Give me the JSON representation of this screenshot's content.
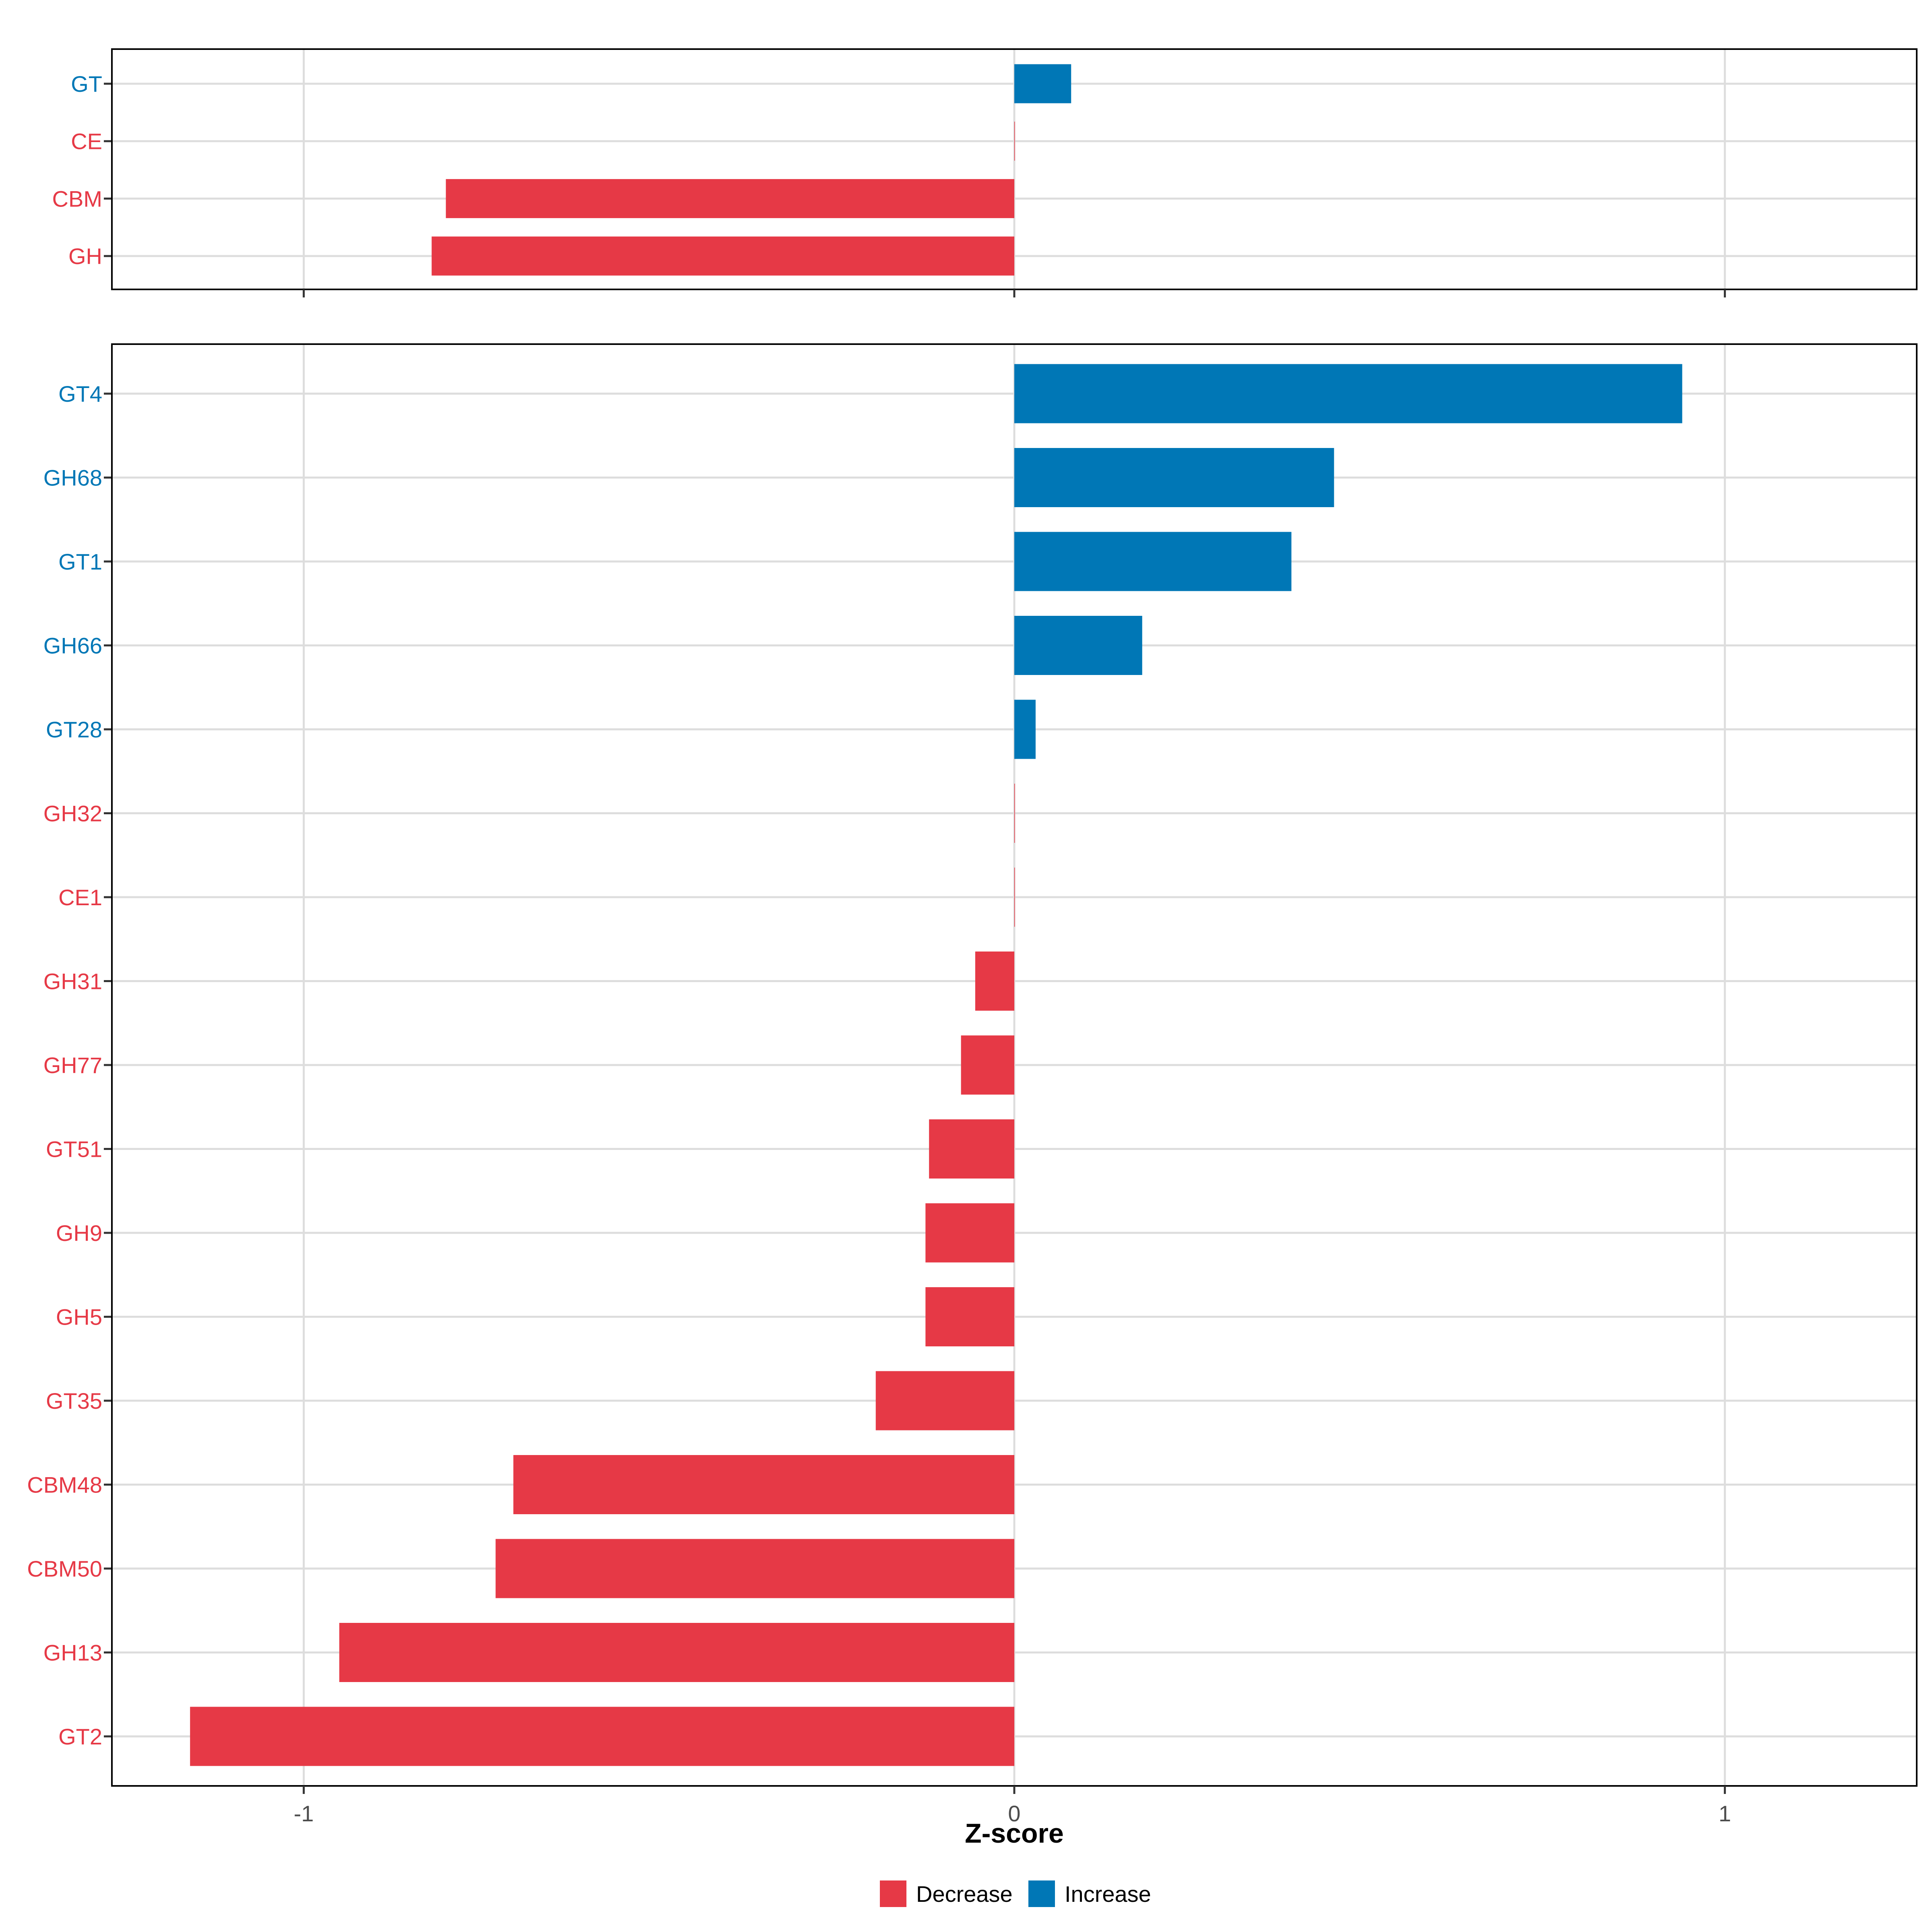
{
  "chart_data": {
    "type": "bar",
    "orientation": "horizontal",
    "xlabel": "Z-score",
    "xlim": [
      -1.27,
      1.27
    ],
    "xticks": [
      -1,
      0,
      1
    ],
    "xtick_labels": [
      "-1",
      "0",
      "1"
    ],
    "grid": true,
    "colors": {
      "Decrease": "#E63946",
      "Increase": "#0077B6"
    },
    "legend": {
      "position": "bottom",
      "entries": [
        {
          "key": "Decrease",
          "label": "Decrease"
        },
        {
          "key": "Increase",
          "label": "Increase"
        }
      ]
    },
    "panels": [
      {
        "name": "top",
        "categories": [
          "GT",
          "CE",
          "CBM",
          "GH"
        ],
        "values": [
          0.08,
          0.0,
          -0.8,
          -0.82
        ],
        "direction": [
          "Increase",
          "Decrease",
          "Decrease",
          "Decrease"
        ]
      },
      {
        "name": "bottom",
        "categories": [
          "GT4",
          "GH68",
          "GT1",
          "GH66",
          "GT28",
          "GH32",
          "CE1",
          "GH31",
          "GH77",
          "GT51",
          "GH9",
          "GH5",
          "GT35",
          "CBM48",
          "CBM50",
          "GH13",
          "GT2"
        ],
        "values": [
          0.94,
          0.45,
          0.39,
          0.18,
          0.03,
          0.0,
          0.0,
          -0.055,
          -0.075,
          -0.12,
          -0.125,
          -0.125,
          -0.195,
          -0.705,
          -0.73,
          -0.95,
          -1.16
        ],
        "direction": [
          "Increase",
          "Increase",
          "Increase",
          "Increase",
          "Increase",
          "Decrease",
          "Decrease",
          "Decrease",
          "Decrease",
          "Decrease",
          "Decrease",
          "Decrease",
          "Decrease",
          "Decrease",
          "Decrease",
          "Decrease",
          "Decrease"
        ]
      }
    ]
  }
}
